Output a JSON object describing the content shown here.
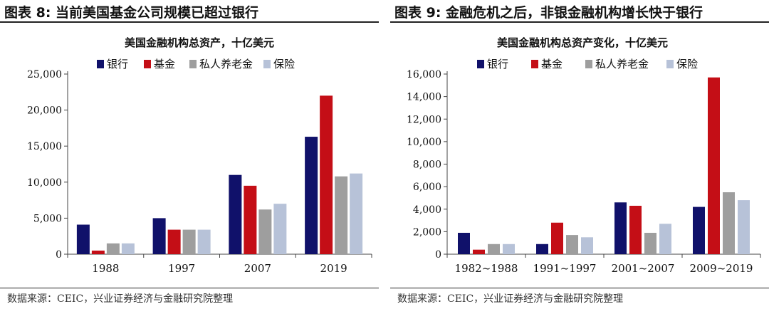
{
  "colors": {
    "bank": "#10116a",
    "fund": "#c40e16",
    "pension": "#9e9e9e",
    "insurance": "#b7c2d8"
  },
  "left": {
    "fig_title": "图表 8:  当前美国基金公司规模已超过银行",
    "source": "数据来源：CEIC，兴业证券经济与金融研究院整理"
  },
  "right": {
    "fig_title": "图表 9:  金融危机之后，非银金融机构增长快于银行",
    "source": "数据来源：CEIC，兴业证券经济与金融研究院整理"
  },
  "chart_data": [
    {
      "type": "bar",
      "title": "美国金融机构总资产，十亿美元",
      "categories": [
        "1988",
        "1997",
        "2007",
        "2019"
      ],
      "series": [
        {
          "name": "银行",
          "values": [
            4100,
            5000,
            11000,
            16300
          ]
        },
        {
          "name": "基金",
          "values": [
            500,
            3400,
            9500,
            22000
          ]
        },
        {
          "name": "私人养老金",
          "values": [
            1500,
            3400,
            6200,
            10800
          ]
        },
        {
          "name": "保险",
          "values": [
            1500,
            3400,
            7000,
            11200
          ]
        }
      ],
      "ylim": [
        0,
        25000
      ],
      "yticks": [
        0,
        5000,
        10000,
        15000,
        20000,
        25000
      ],
      "ytick_labels": [
        "0",
        "5,000",
        "10,000",
        "15,000",
        "20,000",
        "25,000"
      ],
      "xlabel": "",
      "ylabel": "",
      "legend": "top"
    },
    {
      "type": "bar",
      "title": "美国金融机构总资产变化，十亿美元",
      "categories": [
        "1982~1988",
        "1991~1997",
        "2001~2007",
        "2009~2019"
      ],
      "series": [
        {
          "name": "银行",
          "values": [
            1900,
            900,
            4600,
            4200
          ]
        },
        {
          "name": "基金",
          "values": [
            400,
            2800,
            4300,
            15700
          ]
        },
        {
          "name": "私人养老金",
          "values": [
            900,
            1700,
            1900,
            5500
          ]
        },
        {
          "name": "保险",
          "values": [
            900,
            1500,
            2700,
            4800
          ]
        }
      ],
      "ylim": [
        0,
        16000
      ],
      "yticks": [
        0,
        2000,
        4000,
        6000,
        8000,
        10000,
        12000,
        14000,
        16000
      ],
      "ytick_labels": [
        "0",
        "2,000",
        "4,000",
        "6,000",
        "8,000",
        "10,000",
        "12,000",
        "14,000",
        "16,000"
      ],
      "xlabel": "",
      "ylabel": "",
      "legend": "top"
    }
  ]
}
